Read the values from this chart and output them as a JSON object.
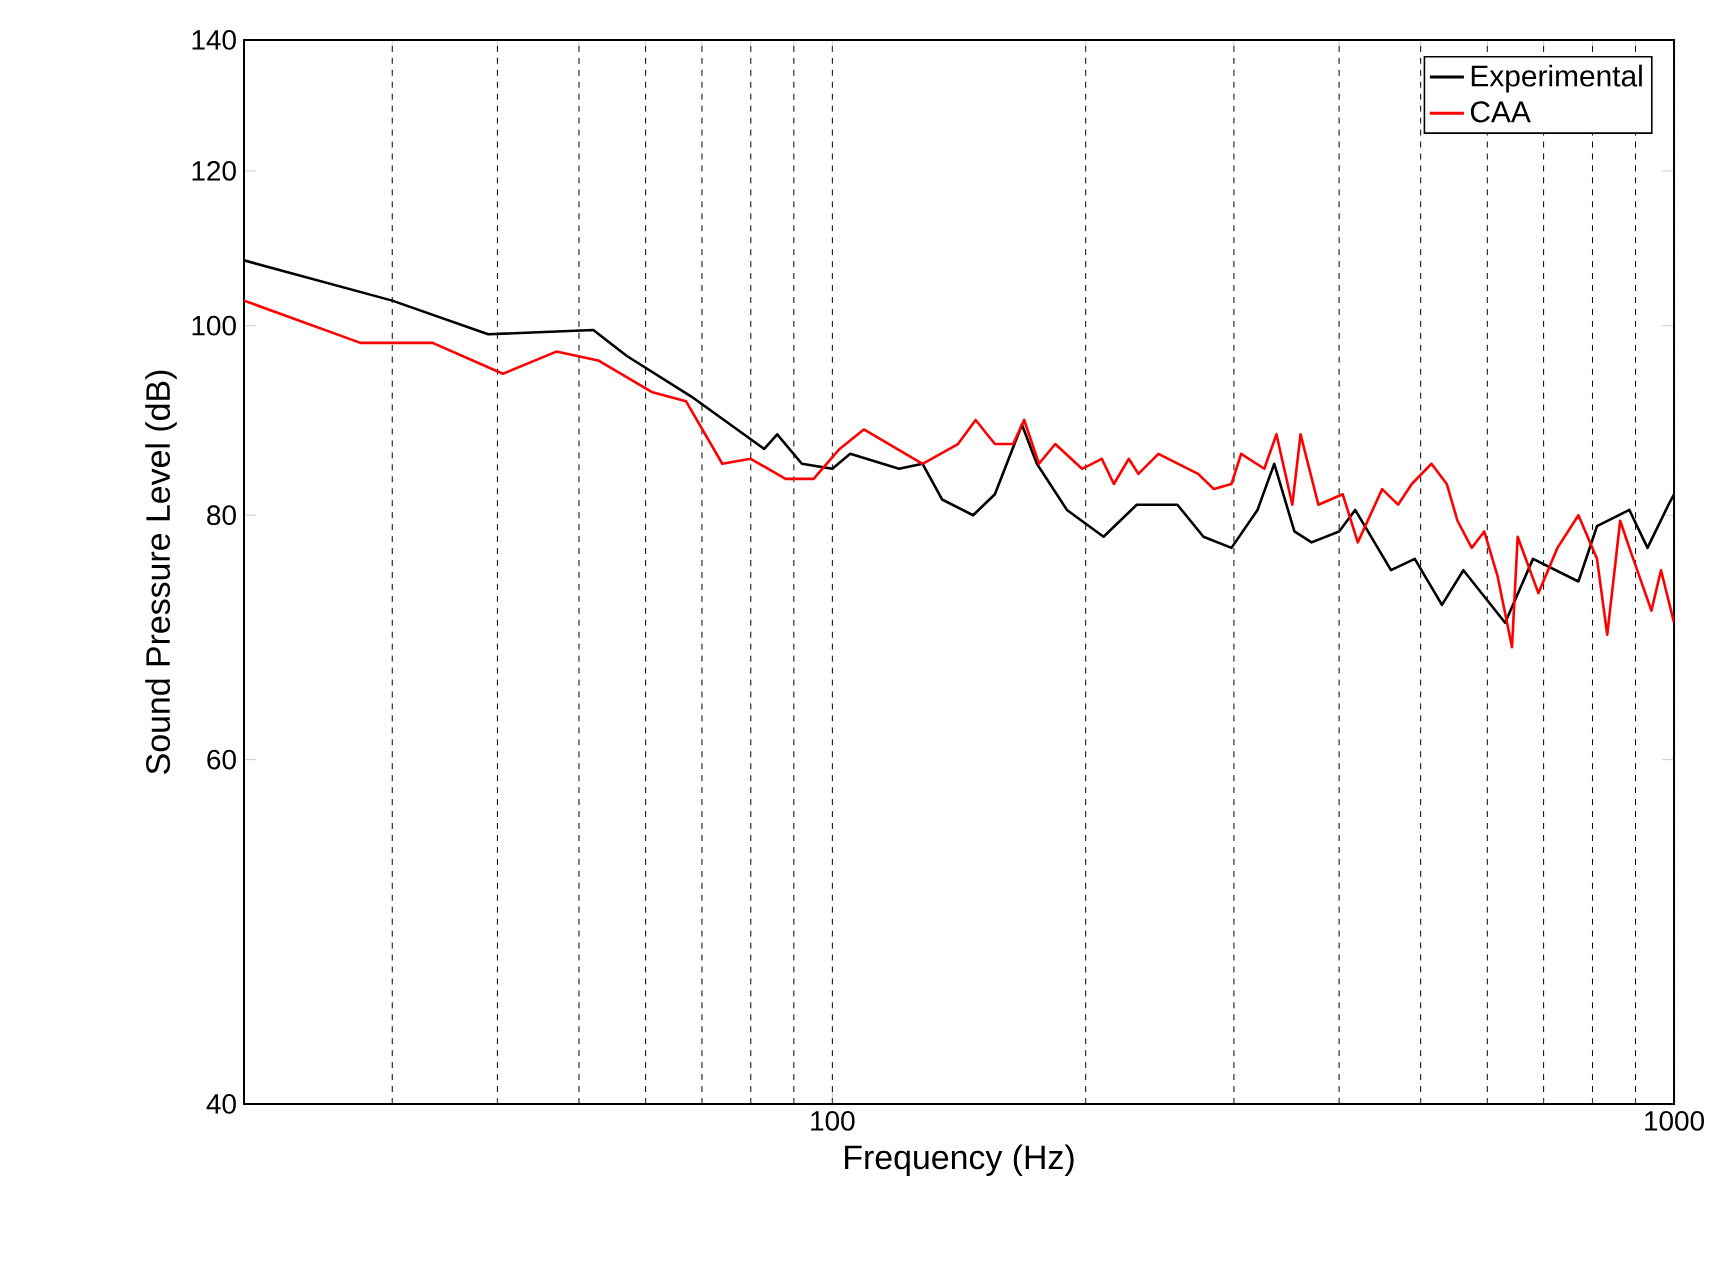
{
  "chart_data": {
    "type": "line",
    "xlabel": "Frequency (Hz)",
    "ylabel": "Sound Pressure Level (dB)",
    "log": "xy",
    "xlim": [
      20,
      1000
    ],
    "ylim": [
      40,
      140
    ],
    "xticks": [
      100,
      1000
    ],
    "yticks": [
      40,
      60,
      80,
      100,
      120,
      140
    ],
    "grid": "x",
    "legend": "top right",
    "line_style": "solid",
    "marker": "none",
    "series": [
      {
        "name": "Experimental",
        "color": "#000000",
        "x": [
          20,
          30,
          39,
          52,
          57,
          68,
          83,
          86,
          92,
          100,
          105,
          120,
          128,
          135,
          147,
          156,
          168,
          175,
          190,
          210,
          230,
          257,
          276,
          298,
          320,
          335,
          354,
          371,
          400,
          418,
          461,
          492,
          530,
          562,
          630,
          680,
          770,
          810,
          885,
          930,
          985,
          1000
        ],
        "values": [
          108,
          103,
          99,
          99.5,
          96.5,
          92,
          86.5,
          88,
          85,
          84.5,
          86,
          84.5,
          85,
          81.5,
          80,
          82,
          89,
          85,
          80.5,
          78,
          81,
          81,
          78,
          77,
          80.5,
          85,
          78.5,
          77.5,
          78.5,
          80.5,
          75,
          76,
          72,
          75,
          70.5,
          76,
          74,
          79,
          80.5,
          77,
          81,
          82
        ]
      },
      {
        "name": "CAA",
        "color": "#ff0000",
        "x": [
          20,
          27.5,
          33.5,
          40.6,
          47,
          52.7,
          61,
          67,
          74,
          80,
          88,
          95,
          102,
          109,
          128,
          141,
          148,
          156,
          164,
          169,
          176,
          184,
          198,
          209,
          216,
          225,
          231,
          244,
          272,
          284,
          298,
          306,
          326,
          337,
          352,
          360,
          378,
          404,
          421,
          450,
          470,
          488,
          515,
          537,
          553,
          575,
          595,
          617,
          642,
          652,
          690,
          727,
          770,
          810,
          833,
          863,
          885,
          940,
          965,
          1000
        ],
        "values": [
          103,
          98,
          98,
          94.5,
          97,
          96,
          92.5,
          91.5,
          85,
          85.5,
          83.5,
          83.5,
          86.5,
          88.5,
          85,
          87,
          89.5,
          87,
          87,
          89.5,
          85,
          87,
          84.5,
          85.5,
          83,
          85.5,
          84,
          86,
          84,
          82.5,
          83,
          86,
          84.5,
          88,
          81,
          88,
          81,
          82,
          77.5,
          82.5,
          81,
          83,
          85,
          83,
          79.5,
          77,
          78.5,
          74.5,
          68.5,
          78,
          73,
          77,
          80,
          76,
          69.5,
          79.5,
          77,
          71.5,
          75,
          70.5
        ]
      }
    ]
  }
}
